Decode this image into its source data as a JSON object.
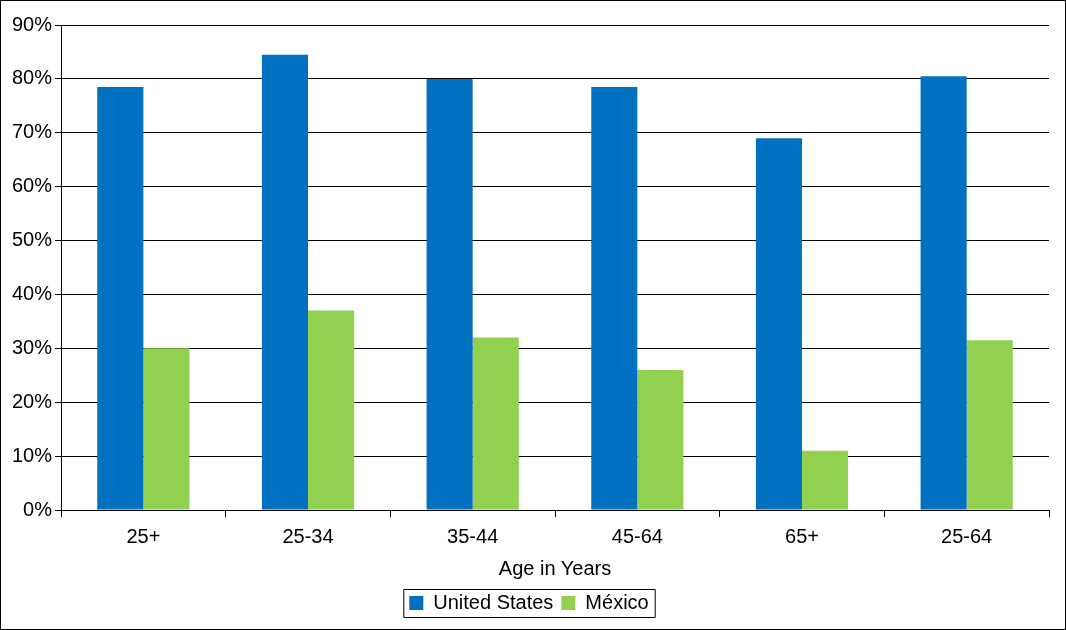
{
  "chart_data": {
    "type": "bar",
    "xlabel": "Age in Years",
    "categories": [
      "25+",
      "25-34",
      "35-44",
      "45-64",
      "65+",
      "25-64"
    ],
    "series": [
      {
        "name": "United States",
        "color": "#0070c0",
        "values": [
          78.5,
          84.5,
          80,
          78.5,
          69,
          80.5
        ]
      },
      {
        "name": "México",
        "color": "#92d050",
        "values": [
          30,
          37,
          32,
          26,
          11,
          31.5
        ]
      }
    ],
    "ylim": [
      0,
      90
    ],
    "yticks": [
      {
        "value": 0,
        "label": "0%"
      },
      {
        "value": 10,
        "label": "10%"
      },
      {
        "value": 20,
        "label": "20%"
      },
      {
        "value": 30,
        "label": "30%"
      },
      {
        "value": 40,
        "label": "40%"
      },
      {
        "value": 50,
        "label": "50%"
      },
      {
        "value": 60,
        "label": "60%"
      },
      {
        "value": 70,
        "label": "70%"
      },
      {
        "value": 80,
        "label": "80%"
      },
      {
        "value": 90,
        "label": "90%"
      }
    ],
    "grid": "y",
    "legend": "bottom"
  }
}
